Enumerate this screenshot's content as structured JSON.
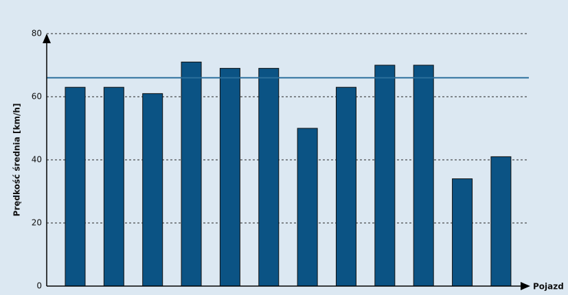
{
  "chart_data": {
    "type": "bar",
    "x_label": "Pojazd",
    "y_label": "Prędkość średnia [km/h]",
    "categories": [
      null,
      null,
      null,
      null,
      null,
      null,
      null,
      null,
      null,
      null,
      null,
      null
    ],
    "values": [
      63,
      63,
      61,
      71,
      69,
      69,
      50,
      63,
      70,
      70,
      34,
      41
    ],
    "color": "#0b5384",
    "reference_line": 66,
    "reference_color": "#2b6f9b",
    "ylim": [
      0,
      80
    ],
    "yticks": [
      0,
      20,
      40,
      60,
      80
    ],
    "grid": true
  }
}
